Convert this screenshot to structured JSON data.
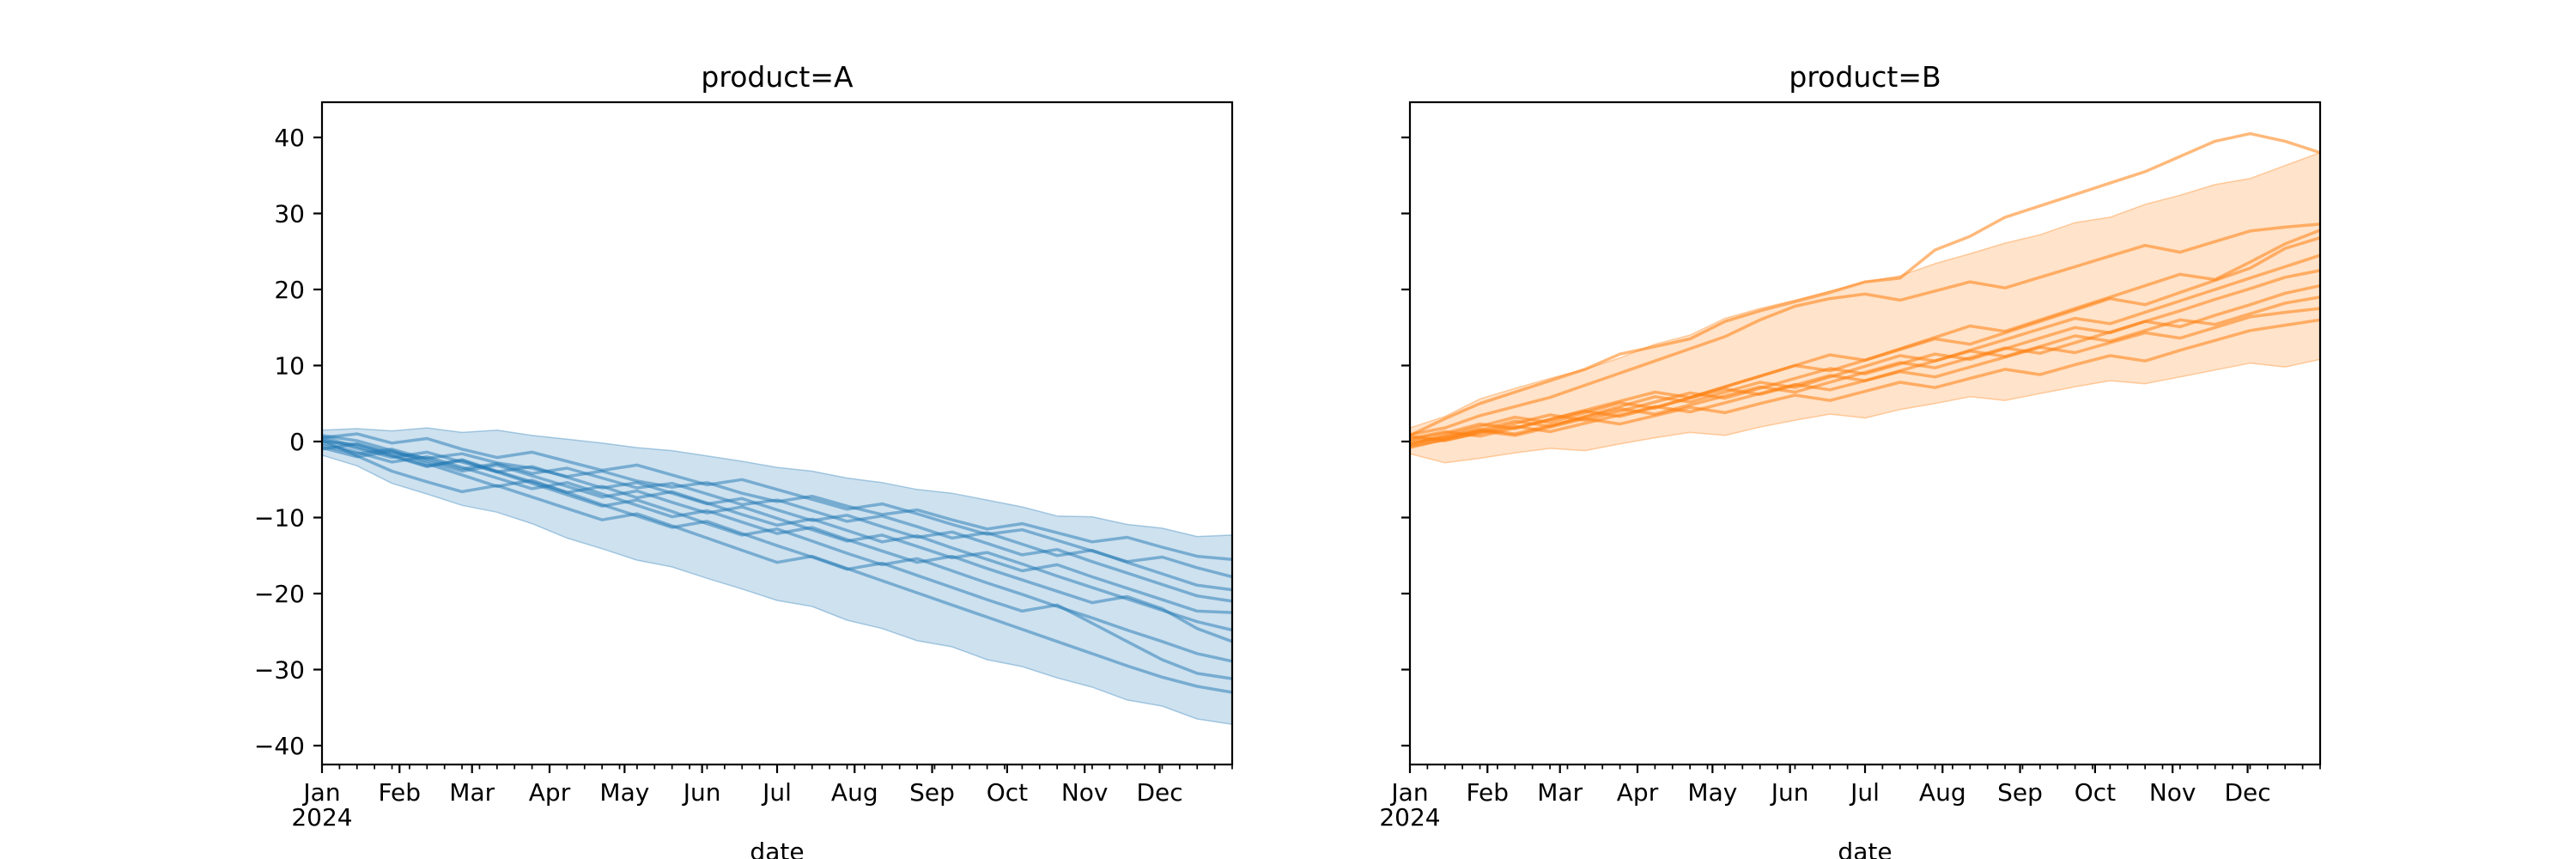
{
  "figure": {
    "background": "#ffffff"
  },
  "chart_data": [
    {
      "type": "line",
      "title": "product=A",
      "xlabel": "date",
      "color": "#1f77b4",
      "legend": "none",
      "grid": false,
      "x_axis": {
        "tick_labels": [
          "Jan",
          "Feb",
          "Mar",
          "Apr",
          "May",
          "Jun",
          "Jul",
          "Aug",
          "Sep",
          "Oct",
          "Nov",
          "Dec"
        ],
        "tick_month_start_days": [
          0,
          31,
          60,
          91,
          121,
          152,
          182,
          213,
          244,
          274,
          305,
          335
        ],
        "minor_tick_interval_days": 7,
        "year_label": "2024",
        "range_days": [
          0,
          364
        ]
      },
      "y_axis": {
        "ticks": [
          -40,
          -30,
          -20,
          -10,
          0,
          10,
          20,
          30,
          40
        ],
        "labels_visible": true,
        "range": [
          -42.5,
          44.6
        ]
      },
      "x_days": [
        0,
        14,
        28,
        42,
        56,
        70,
        84,
        98,
        112,
        126,
        140,
        154,
        168,
        182,
        196,
        210,
        224,
        238,
        252,
        266,
        280,
        294,
        308,
        322,
        336,
        350,
        364
      ],
      "band": {
        "upper": [
          1.5,
          1.7,
          1.4,
          1.8,
          1.2,
          1.5,
          0.8,
          0.3,
          -0.2,
          -0.8,
          -1.2,
          -1.9,
          -2.6,
          -3.4,
          -3.9,
          -4.8,
          -5.4,
          -6.3,
          -6.8,
          -7.7,
          -8.6,
          -9.8,
          -9.9,
          -10.9,
          -11.4,
          -12.5,
          -12.3
        ],
        "lower": [
          -1.8,
          -3.2,
          -5.5,
          -6.9,
          -8.4,
          -9.3,
          -10.8,
          -12.7,
          -14.1,
          -15.6,
          -16.5,
          -18.0,
          -19.4,
          -20.9,
          -21.7,
          -23.5,
          -24.6,
          -26.2,
          -27.0,
          -28.7,
          -29.6,
          -31.1,
          -32.3,
          -34.0,
          -34.8,
          -36.5,
          -37.2
        ]
      },
      "series": [
        [
          0,
          -0.4,
          -1.5,
          -2.2,
          -1.6,
          -2.8,
          -3.5,
          -4.6,
          -3.9,
          -5.2,
          -6.0,
          -5.4,
          -6.8,
          -7.9,
          -7.2,
          -8.5,
          -9.6,
          -9.0,
          -10.3,
          -11.5,
          -10.8,
          -12.0,
          -13.2,
          -12.6,
          -13.9,
          -15.1,
          -15.5
        ],
        [
          0.5,
          1.0,
          -0.2,
          0.4,
          -1.0,
          -2.1,
          -1.4,
          -2.6,
          -3.8,
          -3.1,
          -4.4,
          -5.7,
          -5.0,
          -6.3,
          -7.6,
          -8.9,
          -8.2,
          -9.5,
          -10.9,
          -12.2,
          -11.6,
          -13.0,
          -14.4,
          -15.8,
          -15.2,
          -16.6,
          -17.8
        ],
        [
          -0.5,
          -1.6,
          -1.0,
          -2.3,
          -3.6,
          -2.9,
          -4.2,
          -3.5,
          -4.8,
          -6.1,
          -5.5,
          -6.9,
          -8.3,
          -7.7,
          -9.1,
          -10.5,
          -9.8,
          -11.2,
          -12.7,
          -12.0,
          -13.5,
          -15.0,
          -14.3,
          -15.9,
          -17.4,
          -18.9,
          -19.5
        ],
        [
          0.3,
          -0.9,
          -2.1,
          -1.4,
          -2.7,
          -4.0,
          -3.3,
          -4.7,
          -6.1,
          -5.4,
          -6.8,
          -8.2,
          -7.5,
          -9.0,
          -10.4,
          -9.7,
          -11.2,
          -12.6,
          -11.9,
          -13.4,
          -14.9,
          -14.2,
          -15.8,
          -17.3,
          -18.8,
          -20.3,
          -21.0
        ],
        [
          -1.0,
          -0.3,
          -1.8,
          -3.2,
          -2.4,
          -3.9,
          -5.3,
          -6.7,
          -5.9,
          -7.4,
          -6.6,
          -8.1,
          -9.6,
          -11.0,
          -10.2,
          -11.7,
          -13.2,
          -12.4,
          -14.0,
          -15.5,
          -17.0,
          -16.2,
          -17.8,
          -19.3,
          -20.8,
          -22.3,
          -22.5
        ],
        [
          0.8,
          0.1,
          -1.2,
          -2.6,
          -3.9,
          -3.1,
          -4.5,
          -5.9,
          -7.3,
          -6.5,
          -8.0,
          -9.4,
          -8.6,
          -10.1,
          -11.6,
          -13.1,
          -12.3,
          -13.8,
          -15.3,
          -14.6,
          -16.1,
          -17.7,
          -19.2,
          -20.7,
          -22.2,
          -23.7,
          -24.8
        ],
        [
          -0.2,
          -1.4,
          -2.7,
          -2.0,
          -3.4,
          -4.8,
          -6.2,
          -5.4,
          -6.9,
          -8.4,
          -9.9,
          -9.1,
          -10.6,
          -12.1,
          -11.3,
          -12.9,
          -14.4,
          -15.9,
          -15.1,
          -16.7,
          -18.2,
          -19.7,
          -21.2,
          -20.4,
          -22.0,
          -24.6,
          -26.3
        ],
        [
          0.6,
          -0.7,
          -1.9,
          -3.3,
          -2.5,
          -4.0,
          -5.5,
          -7.0,
          -8.5,
          -7.7,
          -9.2,
          -10.8,
          -12.3,
          -11.5,
          -13.1,
          -14.7,
          -16.2,
          -15.4,
          -17.0,
          -18.6,
          -20.1,
          -21.7,
          -23.2,
          -24.8,
          -26.3,
          -27.9,
          -28.9
        ],
        [
          -0.8,
          -2.0,
          -1.3,
          -2.9,
          -4.4,
          -5.9,
          -5.1,
          -6.7,
          -8.3,
          -9.8,
          -11.3,
          -10.5,
          -12.1,
          -13.7,
          -15.2,
          -16.8,
          -16.0,
          -17.6,
          -19.2,
          -20.8,
          -22.3,
          -21.5,
          -23.9,
          -26.3,
          -28.7,
          -30.5,
          -31.2
        ],
        [
          0.2,
          -1.9,
          -3.9,
          -5.3,
          -6.6,
          -5.8,
          -7.3,
          -8.8,
          -10.3,
          -9.5,
          -11.1,
          -12.7,
          -14.3,
          -15.9,
          -15.1,
          -16.7,
          -18.3,
          -19.9,
          -21.5,
          -23.1,
          -24.7,
          -26.3,
          -27.9,
          -29.5,
          -31.0,
          -32.2,
          -33.0
        ]
      ]
    },
    {
      "type": "line",
      "title": "product=B",
      "xlabel": "date",
      "color": "#ff7f0e",
      "legend": "none",
      "grid": false,
      "x_axis": {
        "tick_labels": [
          "Jan",
          "Feb",
          "Mar",
          "Apr",
          "May",
          "Jun",
          "Jul",
          "Aug",
          "Sep",
          "Oct",
          "Nov",
          "Dec"
        ],
        "tick_month_start_days": [
          0,
          31,
          60,
          91,
          121,
          152,
          182,
          213,
          244,
          274,
          305,
          335
        ],
        "minor_tick_interval_days": 7,
        "year_label": "2024",
        "range_days": [
          0,
          364
        ]
      },
      "y_axis": {
        "ticks": [
          -40,
          -30,
          -20,
          -10,
          0,
          10,
          20,
          30,
          40
        ],
        "labels_visible": false,
        "range": [
          -42.5,
          44.6
        ]
      },
      "x_days": [
        0,
        14,
        28,
        42,
        56,
        70,
        84,
        98,
        112,
        126,
        140,
        154,
        168,
        182,
        196,
        210,
        224,
        238,
        252,
        266,
        280,
        294,
        308,
        322,
        336,
        350,
        364
      ],
      "band": {
        "upper": [
          1.8,
          3.3,
          5.6,
          7.0,
          8.3,
          9.5,
          11.0,
          12.8,
          14.0,
          16.2,
          17.5,
          18.6,
          19.8,
          21.0,
          21.8,
          23.4,
          24.7,
          26.1,
          27.2,
          28.8,
          29.5,
          31.2,
          32.4,
          33.8,
          34.6,
          36.3,
          38.0
        ],
        "lower": [
          -1.6,
          -2.8,
          -2.2,
          -1.5,
          -0.9,
          -1.2,
          -0.3,
          0.5,
          1.2,
          0.8,
          1.9,
          2.8,
          3.6,
          3.1,
          4.2,
          5.0,
          5.9,
          5.4,
          6.3,
          7.2,
          8.0,
          7.6,
          8.5,
          9.4,
          10.3,
          9.8,
          10.8
        ]
      },
      "series": [
        [
          0,
          0.5,
          1.4,
          0.8,
          1.9,
          3.0,
          2.3,
          3.4,
          4.5,
          3.8,
          5.0,
          6.1,
          5.4,
          6.6,
          7.8,
          7.1,
          8.3,
          9.5,
          8.8,
          10.1,
          11.3,
          10.6,
          12.0,
          13.3,
          14.6,
          15.3,
          16.0
        ],
        [
          -0.6,
          0.2,
          1.1,
          2.0,
          1.3,
          2.4,
          3.5,
          4.6,
          3.9,
          5.1,
          6.3,
          7.5,
          6.8,
          8.0,
          9.2,
          8.5,
          9.8,
          11.1,
          12.4,
          11.7,
          13.0,
          14.3,
          13.6,
          15.0,
          16.4,
          17.0,
          17.5
        ],
        [
          0.4,
          1.3,
          0.7,
          1.8,
          2.9,
          4.0,
          3.3,
          4.5,
          5.7,
          6.9,
          6.2,
          7.4,
          8.7,
          8.0,
          9.3,
          10.6,
          11.9,
          11.2,
          12.5,
          13.9,
          13.2,
          14.6,
          16.0,
          15.4,
          16.8,
          18.2,
          19.0
        ],
        [
          -0.3,
          0.6,
          1.6,
          1.0,
          2.1,
          3.2,
          4.3,
          3.6,
          4.8,
          6.0,
          7.2,
          6.5,
          7.8,
          9.1,
          10.4,
          9.7,
          11.0,
          12.3,
          11.6,
          13.0,
          14.4,
          15.8,
          15.1,
          16.6,
          18.0,
          19.5,
          20.5
        ],
        [
          0.7,
          0.1,
          1.2,
          2.4,
          3.5,
          2.8,
          4.0,
          5.2,
          6.4,
          5.7,
          7.0,
          8.3,
          9.6,
          8.9,
          10.2,
          11.5,
          10.8,
          12.2,
          13.6,
          15.0,
          14.3,
          15.8,
          17.2,
          18.7,
          20.1,
          21.6,
          22.5
        ],
        [
          -0.8,
          0.3,
          1.5,
          2.7,
          2.0,
          3.3,
          4.6,
          5.9,
          5.2,
          6.5,
          7.8,
          7.1,
          8.5,
          9.9,
          11.3,
          10.6,
          12.0,
          13.4,
          14.8,
          16.2,
          15.5,
          17.0,
          18.5,
          20.0,
          21.5,
          23.0,
          24.5
        ],
        [
          0.2,
          1.1,
          2.3,
          1.7,
          2.9,
          4.1,
          5.3,
          6.5,
          5.8,
          7.2,
          8.6,
          10.0,
          9.3,
          10.7,
          12.1,
          13.5,
          12.8,
          14.3,
          15.8,
          17.3,
          18.8,
          18.0,
          19.6,
          21.2,
          22.8,
          25.4,
          26.8
        ],
        [
          -0.4,
          0.8,
          2.0,
          3.2,
          2.5,
          3.8,
          5.1,
          4.4,
          5.8,
          7.2,
          8.6,
          10.0,
          11.4,
          10.7,
          12.2,
          13.7,
          15.2,
          14.5,
          16.0,
          17.5,
          19.0,
          20.5,
          22.0,
          21.3,
          23.6,
          26.0,
          27.8
        ],
        [
          0.9,
          1.8,
          3.4,
          4.6,
          5.8,
          7.4,
          9.0,
          10.6,
          12.2,
          13.8,
          16.0,
          17.8,
          18.8,
          19.4,
          18.6,
          19.8,
          21.0,
          20.2,
          21.6,
          23.0,
          24.4,
          25.8,
          24.9,
          26.3,
          27.7,
          28.2,
          28.6
        ],
        [
          0.8,
          3.0,
          5.0,
          6.5,
          8.0,
          9.5,
          11.5,
          12.5,
          13.5,
          15.8,
          17.2,
          18.4,
          19.6,
          21.0,
          21.5,
          25.2,
          27.0,
          29.5,
          31.0,
          32.5,
          34.0,
          35.5,
          37.5,
          39.5,
          40.5,
          39.5,
          38.0
        ]
      ]
    }
  ]
}
